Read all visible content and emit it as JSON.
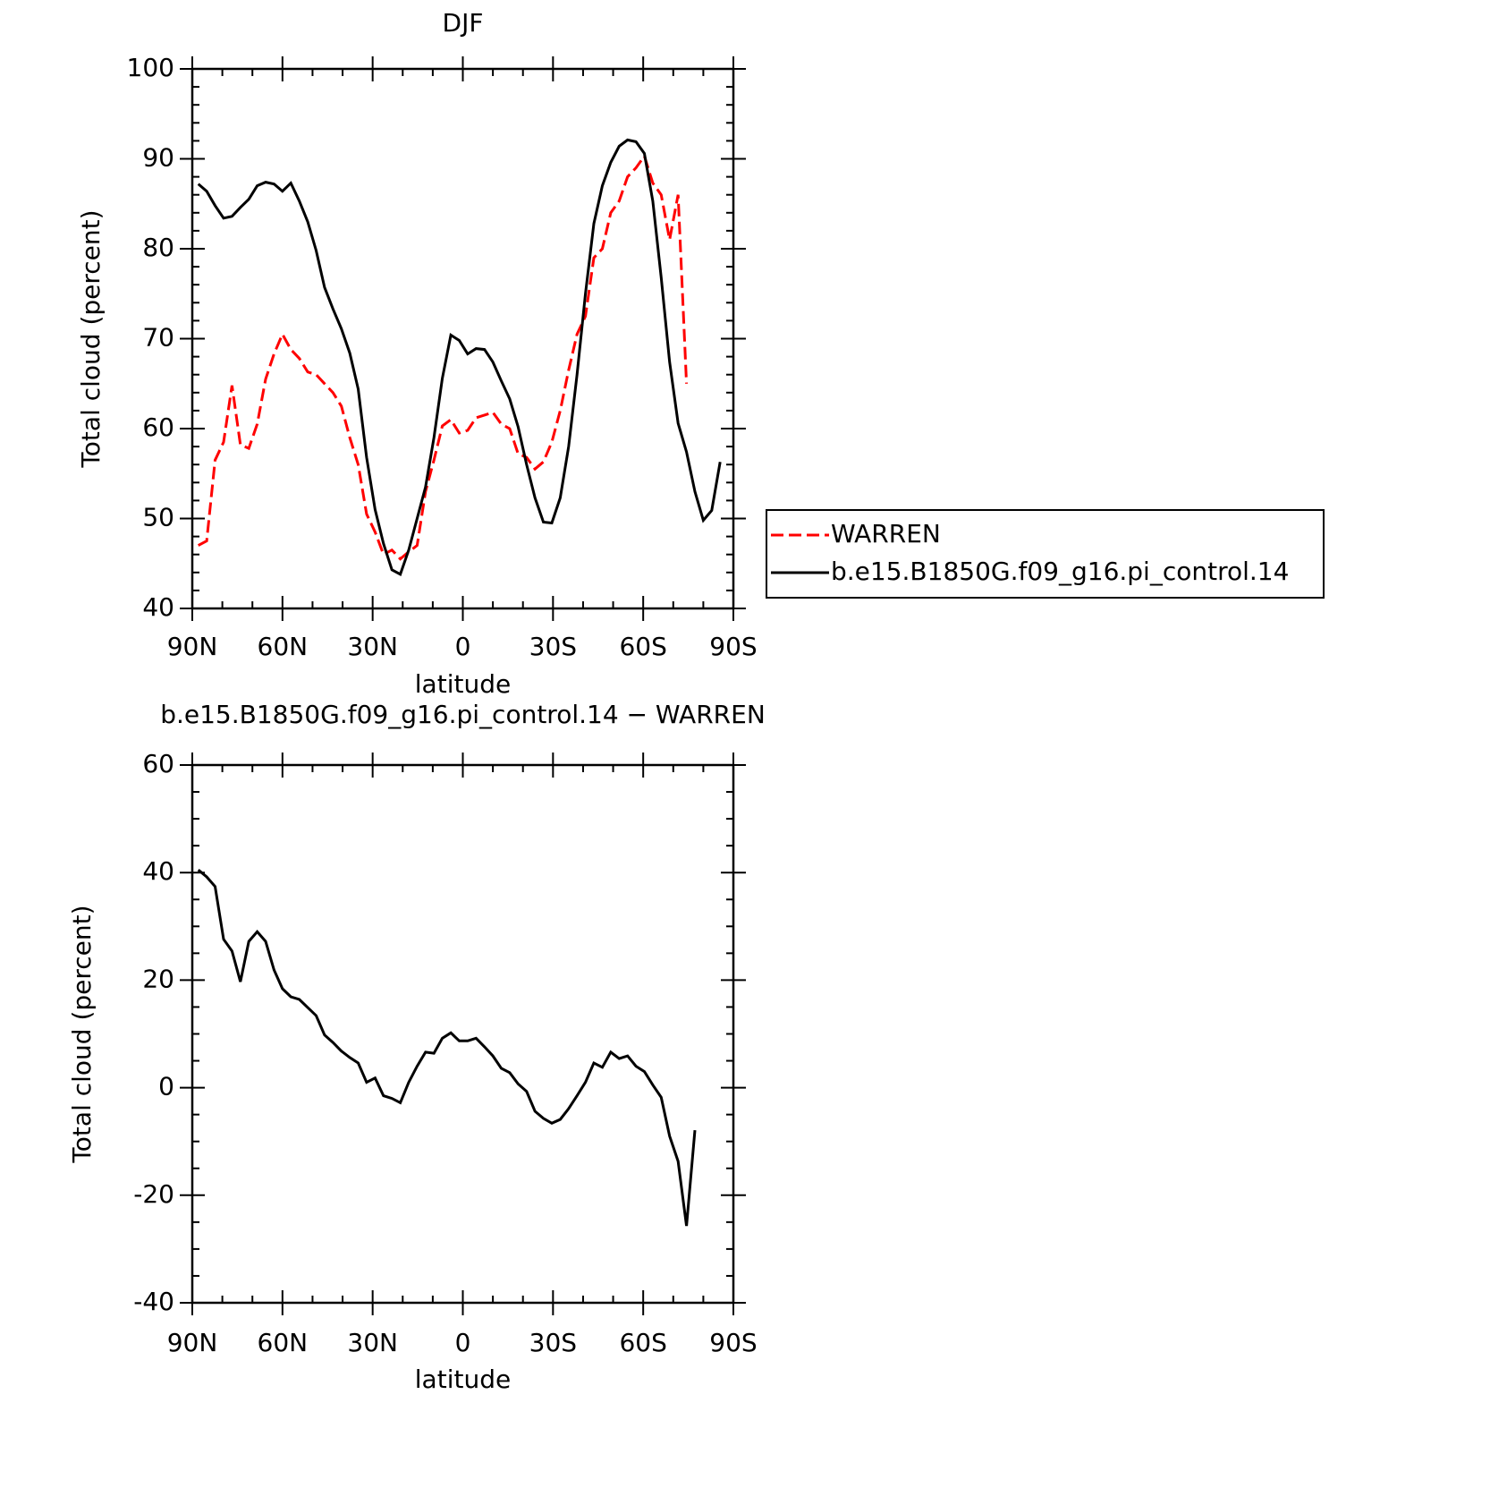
{
  "chart_data": [
    {
      "type": "line",
      "title": "DJF",
      "x_label": "latitude",
      "y_label": "Total cloud (percent)",
      "x": [
        88,
        85.2,
        82.4,
        79.6,
        76.8,
        74,
        71.2,
        68.4,
        65.6,
        62.8,
        60,
        57.2,
        54.4,
        51.6,
        48.8,
        46,
        43.2,
        40.4,
        37.6,
        34.8,
        32,
        29.2,
        26.4,
        23.6,
        20.8,
        18,
        15.2,
        12.4,
        9.6,
        6.8,
        4,
        1.2,
        -1.6,
        -4.4,
        -7.2,
        -10,
        -12.8,
        -15.6,
        -18.4,
        -21.2,
        -24,
        -26.8,
        -29.6,
        -32.4,
        -35.2,
        -38,
        -40.8,
        -43.6,
        -46.4,
        -49.2,
        -52,
        -54.8,
        -57.6,
        -60.4,
        -63.2,
        -66,
        -68.8,
        -71.6,
        -74.4,
        -77.2,
        -80,
        -82.8,
        -85.6
      ],
      "series": [
        {
          "name": "WARREN",
          "color": "#ff0000",
          "dash": true,
          "values": [
            47,
            47.5,
            56.5,
            58.5,
            64.8,
            58.2,
            57.8,
            60.5,
            65.5,
            68.3,
            70.5,
            68.8,
            67.8,
            66.3,
            66,
            65,
            64,
            62.5,
            59,
            56,
            50.5,
            48.5,
            46,
            46.5,
            45.5,
            46.3,
            47,
            53,
            56.5,
            60.3,
            61,
            59.5,
            59.8,
            61.2,
            61.5,
            61.8,
            60.5,
            60,
            57.2,
            56.8,
            55.5,
            56.3,
            58.5,
            62,
            66.5,
            70.5,
            72.5,
            79,
            80,
            84,
            85.3,
            88,
            89,
            90.3,
            87.3,
            86,
            81,
            86,
            65,
            null,
            null,
            null,
            null
          ]
        },
        {
          "name": "b.e15.B1850G.f09_g16.pi_control.14",
          "color": "#000000",
          "dash": false,
          "values": [
            87.2,
            86.4,
            84.8,
            83.4,
            83.6,
            84.6,
            85.5,
            87,
            87.4,
            87.2,
            86.4,
            87.3,
            85.3,
            83,
            79.8,
            75.7,
            73.3,
            71.1,
            68.4,
            64.4,
            56.8,
            51,
            47.2,
            44.3,
            43.8,
            46.5,
            50,
            53.5,
            59,
            65.6,
            70.4,
            69.8,
            68.3,
            68.9,
            68.8,
            67.4,
            65.3,
            63.3,
            60.2,
            56,
            52.3,
            49.6,
            49.5,
            52.3,
            58,
            66,
            75,
            82.8,
            87,
            89.6,
            91.4,
            92.1,
            91.9,
            90.6,
            85.3,
            76.8,
            67.4,
            60.6,
            57.4,
            53,
            49.8,
            50.9,
            56.3
          ]
        }
      ],
      "xlim": [
        90,
        -90
      ],
      "xticks": [
        {
          "value": 90,
          "label": "90N"
        },
        {
          "value": 60,
          "label": "60N"
        },
        {
          "value": 30,
          "label": "30N"
        },
        0,
        {
          "value": -30,
          "label": "30S"
        },
        {
          "value": -60,
          "label": "60S"
        },
        {
          "value": -90,
          "label": "90S"
        }
      ],
      "minor_xticks": [
        80,
        70,
        50,
        40,
        20,
        10,
        -10,
        -20,
        -40,
        -50,
        -70,
        -80
      ],
      "ylim": [
        40,
        100
      ],
      "yticks": [
        40,
        50,
        60,
        70,
        80,
        90,
        100
      ],
      "minor_yticks": [
        42,
        44,
        46,
        48,
        52,
        54,
        56,
        58,
        62,
        64,
        66,
        68,
        72,
        74,
        76,
        78,
        82,
        84,
        86,
        88,
        92,
        94,
        96,
        98
      ],
      "legend": "outside right"
    },
    {
      "type": "line",
      "title": "b.e15.B1850G.f09_g16.pi_control.14 − WARREN",
      "x_label": "latitude",
      "y_label": "Total cloud (percent)",
      "x": [
        88,
        85.2,
        82.4,
        79.6,
        76.8,
        74,
        71.2,
        68.4,
        65.6,
        62.8,
        60,
        57.2,
        54.4,
        51.6,
        48.8,
        46,
        43.2,
        40.4,
        37.6,
        34.8,
        32,
        29.2,
        26.4,
        23.6,
        20.8,
        18,
        15.2,
        12.4,
        9.6,
        6.8,
        4,
        1.2,
        -1.6,
        -4.4,
        -7.2,
        -10,
        -12.8,
        -15.6,
        -18.4,
        -21.2,
        -24,
        -26.8,
        -29.6,
        -32.4,
        -35.2,
        -38,
        -40.8,
        -43.6,
        -46.4,
        -49.2,
        -52,
        -54.8,
        -57.6,
        -60.4,
        -63.2,
        -66,
        -68.8,
        -71.6,
        -74.4,
        -77.2
      ],
      "series": [
        {
          "color": "#000000",
          "dash": false,
          "values": [
            40.5,
            39.2,
            37.4,
            27.6,
            25.4,
            19.7,
            27.2,
            29,
            27.2,
            21.9,
            18.4,
            16.9,
            16.4,
            14.9,
            13.4,
            9.8,
            8.4,
            6.8,
            5.6,
            4.6,
            1,
            1.8,
            -1.5,
            -2,
            -2.8,
            1,
            4,
            6.6,
            6.4,
            9.2,
            10.2,
            8.7,
            8.7,
            9.2,
            7.6,
            5.9,
            3.6,
            2.8,
            0.7,
            -0.7,
            -4.4,
            -5.7,
            -6.6,
            -5.9,
            -3.9,
            -1.5,
            1,
            4.6,
            3.8,
            6.6,
            5.4,
            5.9,
            4,
            3,
            0.5,
            -1.8,
            -9,
            -13.7,
            -25.7,
            -7.9
          ]
        }
      ],
      "xlim": [
        90,
        -90
      ],
      "xticks": [
        {
          "value": 90,
          "label": "90N"
        },
        {
          "value": 60,
          "label": "60N"
        },
        {
          "value": 30,
          "label": "30N"
        },
        0,
        {
          "value": -30,
          "label": "30S"
        },
        {
          "value": -60,
          "label": "60S"
        },
        {
          "value": -90,
          "label": "90S"
        }
      ],
      "minor_xticks": [
        80,
        70,
        50,
        40,
        20,
        10,
        -10,
        -20,
        -40,
        -50,
        -70,
        -80
      ],
      "ylim": [
        -40,
        60
      ],
      "yticks": [
        -40,
        -20,
        0,
        20,
        40,
        60
      ],
      "minor_yticks": [
        -35,
        -30,
        -25,
        -15,
        -10,
        -5,
        5,
        10,
        15,
        25,
        30,
        35,
        45,
        50,
        55
      ]
    }
  ]
}
